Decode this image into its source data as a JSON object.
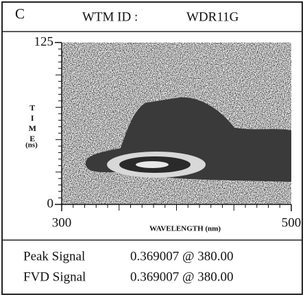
{
  "chart_data": {
    "type": "intensity-map",
    "panel_label": "C",
    "title_label": "WTM ID :",
    "title_value": "WDR11G",
    "x_label": "WAVELENGTH (nm)",
    "y_label": "TIME",
    "y_label_unit": "(ns)",
    "xlim": [
      300,
      500
    ],
    "xticks": [
      300,
      500
    ],
    "ylim": [
      0,
      125
    ],
    "yticks": [
      0,
      125
    ],
    "signals": [
      {
        "name": "Peak Signal",
        "value": "0.369007 @ 380.00"
      },
      {
        "name": "FVD Signal",
        "value": "0.369007 @ 380.00"
      }
    ]
  }
}
